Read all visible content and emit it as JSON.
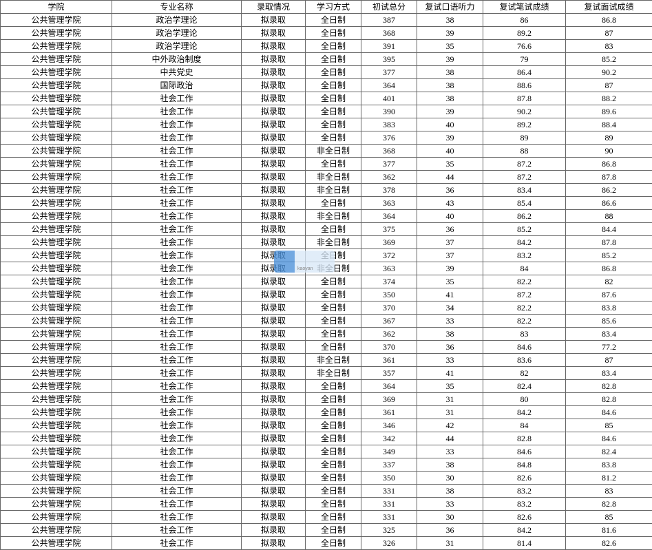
{
  "columns": [
    "学院",
    "专业名称",
    "录取情况",
    "学习方式",
    "初试总分",
    "复试口语听力",
    "复试笔试成绩",
    "复试面试成绩"
  ],
  "rows": [
    [
      "公共管理学院",
      "政治学理论",
      "拟录取",
      "全日制",
      "387",
      "38",
      "86",
      "86.8"
    ],
    [
      "公共管理学院",
      "政治学理论",
      "拟录取",
      "全日制",
      "368",
      "39",
      "89.2",
      "87"
    ],
    [
      "公共管理学院",
      "政治学理论",
      "拟录取",
      "全日制",
      "391",
      "35",
      "76.6",
      "83"
    ],
    [
      "公共管理学院",
      "中外政治制度",
      "拟录取",
      "全日制",
      "395",
      "39",
      "79",
      "85.2"
    ],
    [
      "公共管理学院",
      "中共党史",
      "拟录取",
      "全日制",
      "377",
      "38",
      "86.4",
      "90.2"
    ],
    [
      "公共管理学院",
      "国际政治",
      "拟录取",
      "全日制",
      "364",
      "38",
      "88.6",
      "87"
    ],
    [
      "公共管理学院",
      "社会工作",
      "拟录取",
      "全日制",
      "401",
      "38",
      "87.8",
      "88.2"
    ],
    [
      "公共管理学院",
      "社会工作",
      "拟录取",
      "全日制",
      "390",
      "39",
      "90.2",
      "89.6"
    ],
    [
      "公共管理学院",
      "社会工作",
      "拟录取",
      "全日制",
      "383",
      "40",
      "89.2",
      "88.4"
    ],
    [
      "公共管理学院",
      "社会工作",
      "拟录取",
      "全日制",
      "376",
      "39",
      "89",
      "89"
    ],
    [
      "公共管理学院",
      "社会工作",
      "拟录取",
      "非全日制",
      "368",
      "40",
      "88",
      "90"
    ],
    [
      "公共管理学院",
      "社会工作",
      "拟录取",
      "全日制",
      "377",
      "35",
      "87.2",
      "86.8"
    ],
    [
      "公共管理学院",
      "社会工作",
      "拟录取",
      "非全日制",
      "362",
      "44",
      "87.2",
      "87.8"
    ],
    [
      "公共管理学院",
      "社会工作",
      "拟录取",
      "非全日制",
      "378",
      "36",
      "83.4",
      "86.2"
    ],
    [
      "公共管理学院",
      "社会工作",
      "拟录取",
      "全日制",
      "363",
      "43",
      "85.4",
      "86.6"
    ],
    [
      "公共管理学院",
      "社会工作",
      "拟录取",
      "非全日制",
      "364",
      "40",
      "86.2",
      "88"
    ],
    [
      "公共管理学院",
      "社会工作",
      "拟录取",
      "全日制",
      "375",
      "36",
      "85.2",
      "84.4"
    ],
    [
      "公共管理学院",
      "社会工作",
      "拟录取",
      "非全日制",
      "369",
      "37",
      "84.2",
      "87.8"
    ],
    [
      "公共管理学院",
      "社会工作",
      "拟录取",
      "全日制",
      "372",
      "37",
      "83.2",
      "85.2"
    ],
    [
      "公共管理学院",
      "社会工作",
      "拟录取",
      "非全日制",
      "363",
      "39",
      "84",
      "86.8"
    ],
    [
      "公共管理学院",
      "社会工作",
      "拟录取",
      "全日制",
      "374",
      "35",
      "82.2",
      "82"
    ],
    [
      "公共管理学院",
      "社会工作",
      "拟录取",
      "全日制",
      "350",
      "41",
      "87.2",
      "87.6"
    ],
    [
      "公共管理学院",
      "社会工作",
      "拟录取",
      "全日制",
      "370",
      "34",
      "82.2",
      "83.8"
    ],
    [
      "公共管理学院",
      "社会工作",
      "拟录取",
      "全日制",
      "367",
      "33",
      "82.2",
      "85.6"
    ],
    [
      "公共管理学院",
      "社会工作",
      "拟录取",
      "全日制",
      "362",
      "38",
      "83",
      "83.4"
    ],
    [
      "公共管理学院",
      "社会工作",
      "拟录取",
      "全日制",
      "370",
      "36",
      "84.6",
      "77.2"
    ],
    [
      "公共管理学院",
      "社会工作",
      "拟录取",
      "非全日制",
      "361",
      "33",
      "83.6",
      "87"
    ],
    [
      "公共管理学院",
      "社会工作",
      "拟录取",
      "非全日制",
      "357",
      "41",
      "82",
      "83.4"
    ],
    [
      "公共管理学院",
      "社会工作",
      "拟录取",
      "全日制",
      "364",
      "35",
      "82.4",
      "82.8"
    ],
    [
      "公共管理学院",
      "社会工作",
      "拟录取",
      "全日制",
      "369",
      "31",
      "80",
      "82.8"
    ],
    [
      "公共管理学院",
      "社会工作",
      "拟录取",
      "全日制",
      "361",
      "31",
      "84.2",
      "84.6"
    ],
    [
      "公共管理学院",
      "社会工作",
      "拟录取",
      "全日制",
      "346",
      "42",
      "84",
      "85"
    ],
    [
      "公共管理学院",
      "社会工作",
      "拟录取",
      "全日制",
      "342",
      "44",
      "82.8",
      "84.6"
    ],
    [
      "公共管理学院",
      "社会工作",
      "拟录取",
      "全日制",
      "349",
      "33",
      "84.6",
      "82.4"
    ],
    [
      "公共管理学院",
      "社会工作",
      "拟录取",
      "全日制",
      "337",
      "38",
      "84.8",
      "83.8"
    ],
    [
      "公共管理学院",
      "社会工作",
      "拟录取",
      "全日制",
      "350",
      "30",
      "82.6",
      "81.2"
    ],
    [
      "公共管理学院",
      "社会工作",
      "拟录取",
      "全日制",
      "331",
      "38",
      "83.2",
      "83"
    ],
    [
      "公共管理学院",
      "社会工作",
      "拟录取",
      "全日制",
      "331",
      "33",
      "83.2",
      "82.8"
    ],
    [
      "公共管理学院",
      "社会工作",
      "拟录取",
      "全日制",
      "331",
      "30",
      "82.6",
      "85"
    ],
    [
      "公共管理学院",
      "社会工作",
      "拟录取",
      "全日制",
      "325",
      "36",
      "84.2",
      "81.6"
    ],
    [
      "公共管理学院",
      "社会工作",
      "拟录取",
      "全日制",
      "326",
      "31",
      "81.4",
      "82.6"
    ]
  ],
  "watermark": {
    "small": "kaoyan"
  }
}
